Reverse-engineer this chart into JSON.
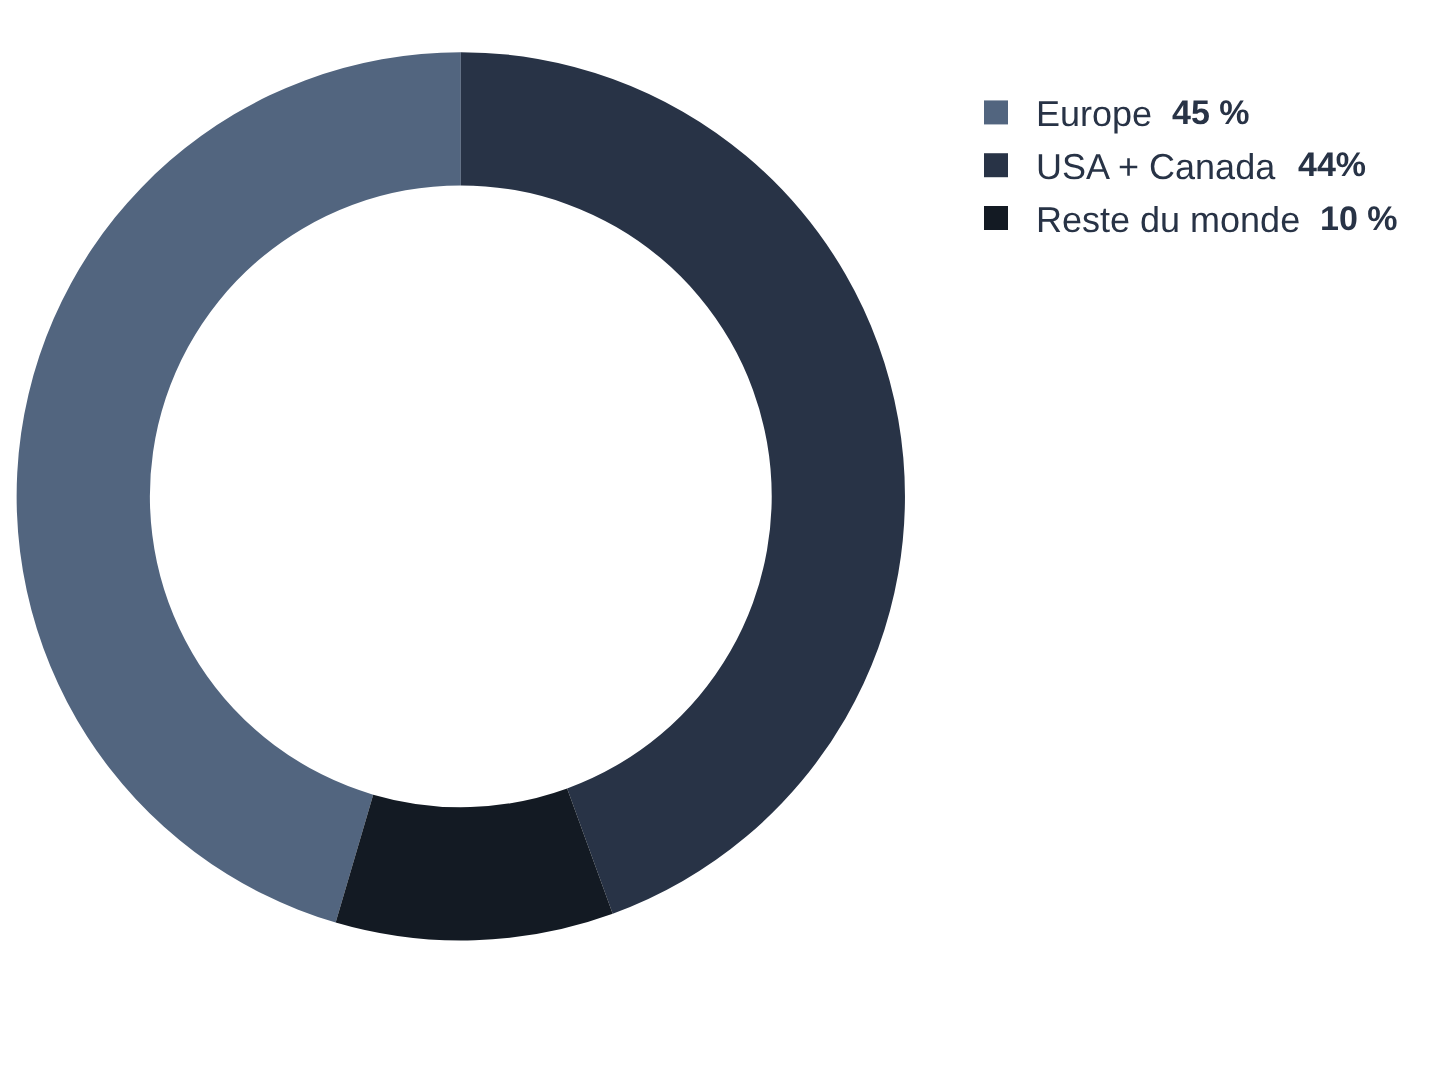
{
  "chart_data": {
    "type": "donut",
    "categories": [
      "Europe",
      "USA + Canada",
      "Reste du monde"
    ],
    "values": [
      45,
      44,
      10
    ],
    "colors": [
      "#52657f",
      "#283346",
      "#131a23"
    ],
    "value_labels": [
      "45 %",
      "44%",
      "10 %"
    ],
    "legend": "right"
  }
}
